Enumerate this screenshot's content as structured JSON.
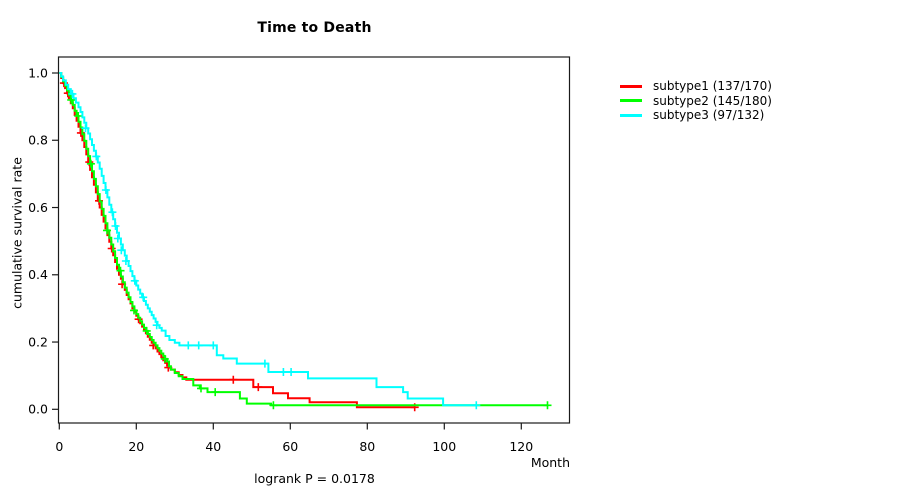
{
  "chart_data": {
    "type": "line",
    "variant": "kaplan-meier-step-survival",
    "title": "Time to Death",
    "xlabel": "Month",
    "ylabel": "cumulative survival rate",
    "annotation": "logrank P = 0.0178",
    "xlim": [
      0,
      132
    ],
    "ylim": [
      0,
      1
    ],
    "xticks": [
      0,
      20,
      40,
      60,
      80,
      100,
      120
    ],
    "yticks": [
      0.0,
      0.2,
      0.4,
      0.6,
      0.8,
      1.0
    ],
    "grid": false,
    "legend_position": "outside-top-right",
    "series": [
      {
        "name": "subtype1",
        "legend_label": "subtype1 (137/170)",
        "events": "137/170",
        "color": "#ff0000",
        "points": [
          [
            0,
            1
          ],
          [
            0.5,
            0.985
          ],
          [
            1,
            0.97
          ],
          [
            1.5,
            0.955
          ],
          [
            2,
            0.94
          ],
          [
            2.5,
            0.925
          ],
          [
            3,
            0.91
          ],
          [
            3.5,
            0.895
          ],
          [
            4,
            0.875
          ],
          [
            4.5,
            0.858
          ],
          [
            5,
            0.84
          ],
          [
            5.5,
            0.822
          ],
          [
            6,
            0.8
          ],
          [
            6.5,
            0.78
          ],
          [
            7,
            0.758
          ],
          [
            7.5,
            0.735
          ],
          [
            8,
            0.712
          ],
          [
            8.5,
            0.69
          ],
          [
            9,
            0.668
          ],
          [
            9.5,
            0.645
          ],
          [
            10,
            0.62
          ],
          [
            10.5,
            0.6
          ],
          [
            11,
            0.578
          ],
          [
            11.5,
            0.558
          ],
          [
            12,
            0.538
          ],
          [
            12.5,
            0.518
          ],
          [
            13,
            0.498
          ],
          [
            13.5,
            0.478
          ],
          [
            14,
            0.458
          ],
          [
            14.5,
            0.438
          ],
          [
            15,
            0.418
          ],
          [
            15.5,
            0.4
          ],
          [
            16,
            0.388
          ],
          [
            16.5,
            0.372
          ],
          [
            17,
            0.355
          ],
          [
            17.5,
            0.34
          ],
          [
            18,
            0.327
          ],
          [
            18.5,
            0.315
          ],
          [
            19,
            0.3
          ],
          [
            19.5,
            0.29
          ],
          [
            20,
            0.278
          ],
          [
            20.5,
            0.268
          ],
          [
            21,
            0.256
          ],
          [
            21.5,
            0.246
          ],
          [
            22,
            0.236
          ],
          [
            22.5,
            0.226
          ],
          [
            23,
            0.216
          ],
          [
            23.5,
            0.207
          ],
          [
            24,
            0.198
          ],
          [
            24.5,
            0.19
          ],
          [
            25,
            0.181
          ],
          [
            25.5,
            0.172
          ],
          [
            26,
            0.164
          ],
          [
            26.5,
            0.155
          ],
          [
            27,
            0.146
          ],
          [
            27.5,
            0.138
          ],
          [
            28,
            0.13
          ],
          [
            28.5,
            0.124
          ],
          [
            29,
            0.118
          ],
          [
            30,
            0.11
          ],
          [
            31,
            0.102
          ],
          [
            32,
            0.095
          ],
          [
            33,
            0.088
          ],
          [
            50.4,
            0.066
          ],
          [
            55.5,
            0.048
          ],
          [
            59.4,
            0.033
          ],
          [
            65,
            0.021
          ],
          [
            77.3,
            0.006
          ],
          [
            92.5,
            0.006
          ]
        ],
        "censor_marks": [
          [
            1.2,
            0.97
          ],
          [
            2.2,
            0.94
          ],
          [
            5.6,
            0.822
          ],
          [
            7.8,
            0.735
          ],
          [
            10.3,
            0.62
          ],
          [
            13.6,
            0.478
          ],
          [
            16.3,
            0.372
          ],
          [
            20.6,
            0.268
          ],
          [
            24.4,
            0.19
          ],
          [
            28.3,
            0.124
          ],
          [
            45.2,
            0.088
          ],
          [
            51.7,
            0.066
          ],
          [
            92.3,
            0.006
          ]
        ]
      },
      {
        "name": "subtype2",
        "legend_label": "subtype2 (145/180)",
        "events": "145/180",
        "color": "#00ff00",
        "points": [
          [
            0,
            1
          ],
          [
            0.5,
            0.988
          ],
          [
            1,
            0.975
          ],
          [
            1.5,
            0.962
          ],
          [
            2,
            0.948
          ],
          [
            2.5,
            0.934
          ],
          [
            3,
            0.92
          ],
          [
            3.5,
            0.905
          ],
          [
            4,
            0.888
          ],
          [
            4.5,
            0.872
          ],
          [
            5,
            0.855
          ],
          [
            5.5,
            0.838
          ],
          [
            6,
            0.818
          ],
          [
            6.5,
            0.798
          ],
          [
            7,
            0.775
          ],
          [
            7.5,
            0.753
          ],
          [
            8,
            0.73
          ],
          [
            8.5,
            0.708
          ],
          [
            9,
            0.685
          ],
          [
            9.5,
            0.663
          ],
          [
            10,
            0.64
          ],
          [
            10.5,
            0.618
          ],
          [
            11,
            0.596
          ],
          [
            11.5,
            0.575
          ],
          [
            12,
            0.553
          ],
          [
            12.5,
            0.532
          ],
          [
            13,
            0.51
          ],
          [
            13.5,
            0.49
          ],
          [
            14,
            0.47
          ],
          [
            14.5,
            0.45
          ],
          [
            15,
            0.43
          ],
          [
            15.5,
            0.412
          ],
          [
            16,
            0.395
          ],
          [
            16.5,
            0.378
          ],
          [
            17,
            0.362
          ],
          [
            17.5,
            0.347
          ],
          [
            18,
            0.333
          ],
          [
            18.5,
            0.319
          ],
          [
            19,
            0.306
          ],
          [
            19.5,
            0.294
          ],
          [
            20,
            0.283
          ],
          [
            20.5,
            0.272
          ],
          [
            21,
            0.262
          ],
          [
            21.5,
            0.252
          ],
          [
            22,
            0.242
          ],
          [
            22.5,
            0.233
          ],
          [
            23,
            0.224
          ],
          [
            23.5,
            0.215
          ],
          [
            24,
            0.206
          ],
          [
            24.5,
            0.198
          ],
          [
            25,
            0.19
          ],
          [
            25.5,
            0.182
          ],
          [
            26,
            0.174
          ],
          [
            26.5,
            0.166
          ],
          [
            27,
            0.158
          ],
          [
            27.5,
            0.15
          ],
          [
            28,
            0.142
          ],
          [
            28.5,
            0.128
          ],
          [
            29,
            0.118
          ],
          [
            30,
            0.108
          ],
          [
            31,
            0.098
          ],
          [
            32,
            0.09
          ],
          [
            34.8,
            0.071
          ],
          [
            36.5,
            0.062
          ],
          [
            38.5,
            0.051
          ],
          [
            46.9,
            0.032
          ],
          [
            48.7,
            0.017
          ],
          [
            55,
            0.012
          ],
          [
            127,
            0.012
          ]
        ],
        "censor_marks": [
          [
            3.1,
            0.92
          ],
          [
            4.9,
            0.872
          ],
          [
            8.2,
            0.73
          ],
          [
            12.4,
            0.532
          ],
          [
            15.9,
            0.412
          ],
          [
            19.4,
            0.294
          ],
          [
            22.7,
            0.233
          ],
          [
            27.4,
            0.15
          ],
          [
            36.8,
            0.062
          ],
          [
            40.5,
            0.051
          ],
          [
            55.6,
            0.012
          ],
          [
            126.8,
            0.012
          ]
        ]
      },
      {
        "name": "subtype3",
        "legend_label": "subtype3 (97/132)",
        "events": "97/132",
        "color": "#00ffff",
        "points": [
          [
            0,
            1
          ],
          [
            0.5,
            0.99
          ],
          [
            1,
            0.978
          ],
          [
            1.7,
            0.965
          ],
          [
            2.3,
            0.952
          ],
          [
            3,
            0.938
          ],
          [
            3.7,
            0.925
          ],
          [
            4.3,
            0.912
          ],
          [
            5,
            0.898
          ],
          [
            5.5,
            0.884
          ],
          [
            6,
            0.868
          ],
          [
            6.5,
            0.852
          ],
          [
            7,
            0.836
          ],
          [
            7.5,
            0.82
          ],
          [
            8,
            0.803
          ],
          [
            8.5,
            0.786
          ],
          [
            9,
            0.769
          ],
          [
            9.5,
            0.752
          ],
          [
            10,
            0.734
          ],
          [
            10.5,
            0.715
          ],
          [
            11,
            0.694
          ],
          [
            11.5,
            0.673
          ],
          [
            12,
            0.652
          ],
          [
            12.5,
            0.63
          ],
          [
            13,
            0.608
          ],
          [
            13.5,
            0.586
          ],
          [
            14,
            0.565
          ],
          [
            14.5,
            0.545
          ],
          [
            15,
            0.525
          ],
          [
            15.5,
            0.508
          ],
          [
            16,
            0.49
          ],
          [
            16.5,
            0.473
          ],
          [
            17,
            0.457
          ],
          [
            17.5,
            0.441
          ],
          [
            18,
            0.426
          ],
          [
            18.5,
            0.411
          ],
          [
            19,
            0.396
          ],
          [
            19.5,
            0.382
          ],
          [
            20,
            0.368
          ],
          [
            20.5,
            0.356
          ],
          [
            21,
            0.344
          ],
          [
            21.5,
            0.333
          ],
          [
            22,
            0.322
          ],
          [
            22.5,
            0.311
          ],
          [
            23,
            0.3
          ],
          [
            23.5,
            0.29
          ],
          [
            24,
            0.28
          ],
          [
            24.5,
            0.27
          ],
          [
            25,
            0.26
          ],
          [
            25.5,
            0.25
          ],
          [
            26,
            0.242
          ],
          [
            26.6,
            0.234
          ],
          [
            27.6,
            0.218
          ],
          [
            28.6,
            0.206
          ],
          [
            30,
            0.198
          ],
          [
            31.2,
            0.19
          ],
          [
            40.9,
            0.161
          ],
          [
            42.6,
            0.151
          ],
          [
            46.1,
            0.136
          ],
          [
            54.3,
            0.111
          ],
          [
            64.6,
            0.092
          ],
          [
            82.4,
            0.066
          ],
          [
            89.3,
            0.051
          ],
          [
            90.5,
            0.032
          ],
          [
            99.7,
            0.012
          ],
          [
            108.5,
            0.012
          ]
        ],
        "censor_marks": [
          [
            3.4,
            0.938
          ],
          [
            6.8,
            0.836
          ],
          [
            9.6,
            0.752
          ],
          [
            12.1,
            0.652
          ],
          [
            13.8,
            0.586
          ],
          [
            14.6,
            0.545
          ],
          [
            15.2,
            0.508
          ],
          [
            16.1,
            0.473
          ],
          [
            17.3,
            0.441
          ],
          [
            19.6,
            0.382
          ],
          [
            21.8,
            0.333
          ],
          [
            25.3,
            0.25
          ],
          [
            33.5,
            0.19
          ],
          [
            36.2,
            0.19
          ],
          [
            40,
            0.19
          ],
          [
            53.4,
            0.136
          ],
          [
            58.2,
            0.111
          ],
          [
            60.2,
            0.111
          ],
          [
            108.3,
            0.012
          ]
        ]
      }
    ]
  },
  "colors": {
    "background": "#ffffff",
    "axis": "#1a1a1a",
    "text": "#000000"
  }
}
